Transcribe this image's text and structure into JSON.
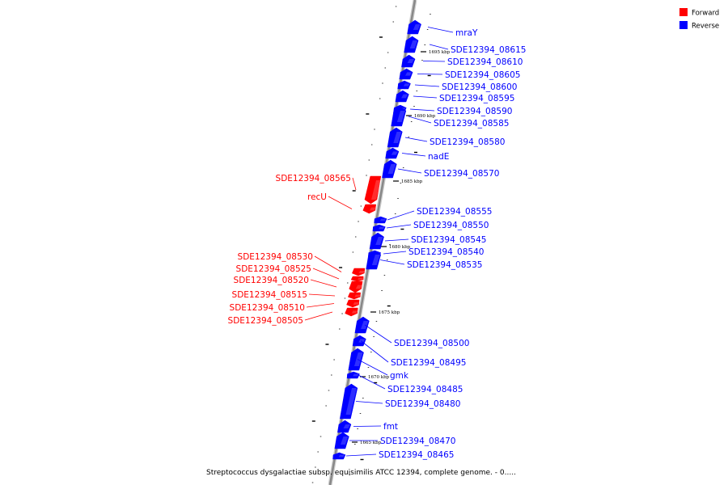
{
  "colors": {
    "forward": "#ff0000",
    "reverse": "#0000ff",
    "backbone": "#888888"
  },
  "legend": {
    "forward_label": "Forward",
    "reverse_label": "Reverse"
  },
  "caption": "Streptococcus dysgalactiae subsp. equisimilis ATCC 12394, complete genome. - 0.....",
  "ticks": [
    "1695 kbp",
    "1690 kbp",
    "1685 kbp",
    "1680 kbp",
    "1675 kbp",
    "1670 kbp",
    "1665 kbp"
  ],
  "genes": [
    {
      "name": "mraY",
      "strand": "reverse"
    },
    {
      "name": "SDE12394_08615",
      "strand": "reverse"
    },
    {
      "name": "SDE12394_08610",
      "strand": "reverse"
    },
    {
      "name": "SDE12394_08605",
      "strand": "reverse"
    },
    {
      "name": "SDE12394_08600",
      "strand": "reverse"
    },
    {
      "name": "SDE12394_08595",
      "strand": "reverse"
    },
    {
      "name": "SDE12394_08590",
      "strand": "reverse"
    },
    {
      "name": "SDE12394_08585",
      "strand": "reverse"
    },
    {
      "name": "SDE12394_08580",
      "strand": "reverse"
    },
    {
      "name": "nadE",
      "strand": "reverse"
    },
    {
      "name": "SDE12394_08570",
      "strand": "reverse"
    },
    {
      "name": "SDE12394_08565",
      "strand": "forward"
    },
    {
      "name": "recU",
      "strand": "forward"
    },
    {
      "name": "SDE12394_08555",
      "strand": "reverse"
    },
    {
      "name": "SDE12394_08550",
      "strand": "reverse"
    },
    {
      "name": "SDE12394_08545",
      "strand": "reverse"
    },
    {
      "name": "SDE12394_08540",
      "strand": "reverse"
    },
    {
      "name": "SDE12394_08535",
      "strand": "reverse"
    },
    {
      "name": "SDE12394_08530",
      "strand": "forward"
    },
    {
      "name": "SDE12394_08525",
      "strand": "forward"
    },
    {
      "name": "SDE12394_08520",
      "strand": "forward"
    },
    {
      "name": "SDE12394_08515",
      "strand": "forward"
    },
    {
      "name": "SDE12394_08510",
      "strand": "forward"
    },
    {
      "name": "SDE12394_08505",
      "strand": "forward"
    },
    {
      "name": "SDE12394_08500",
      "strand": "reverse"
    },
    {
      "name": "SDE12394_08495",
      "strand": "reverse"
    },
    {
      "name": "gmk",
      "strand": "reverse"
    },
    {
      "name": "SDE12394_08485",
      "strand": "reverse"
    },
    {
      "name": "SDE12394_08480",
      "strand": "reverse"
    },
    {
      "name": "fmt",
      "strand": "reverse"
    },
    {
      "name": "SDE12394_08470",
      "strand": "reverse"
    },
    {
      "name": "SDE12394_08465",
      "strand": "reverse"
    }
  ]
}
